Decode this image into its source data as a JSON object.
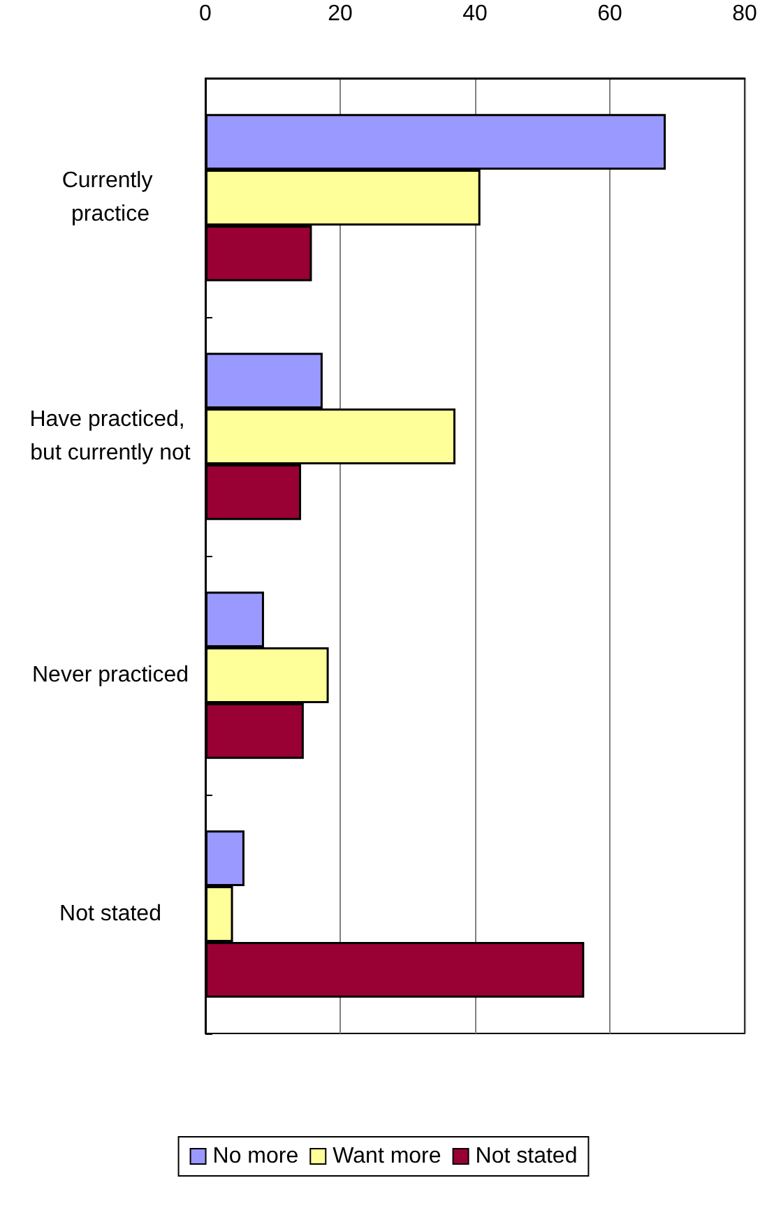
{
  "chart_data": {
    "type": "bar",
    "orientation": "horizontal",
    "categories": [
      "Currently practice",
      "Have practiced, but currently not",
      "Never practiced",
      "Not stated"
    ],
    "series": [
      {
        "name": "No more",
        "color": "#9999ff",
        "values": [
          68.3,
          17.4,
          8.7,
          5.8
        ]
      },
      {
        "name": "Want more",
        "color": "#ffff99",
        "values": [
          40.8,
          37.1,
          18.3,
          4.1
        ]
      },
      {
        "name": "Not stated",
        "color": "#990033",
        "values": [
          15.8,
          14.2,
          14.6,
          56.2
        ]
      }
    ],
    "xlim": [
      0,
      80
    ],
    "xticks": [
      0,
      20,
      40,
      60,
      80
    ],
    "grid": "x",
    "legend": "bottom"
  }
}
